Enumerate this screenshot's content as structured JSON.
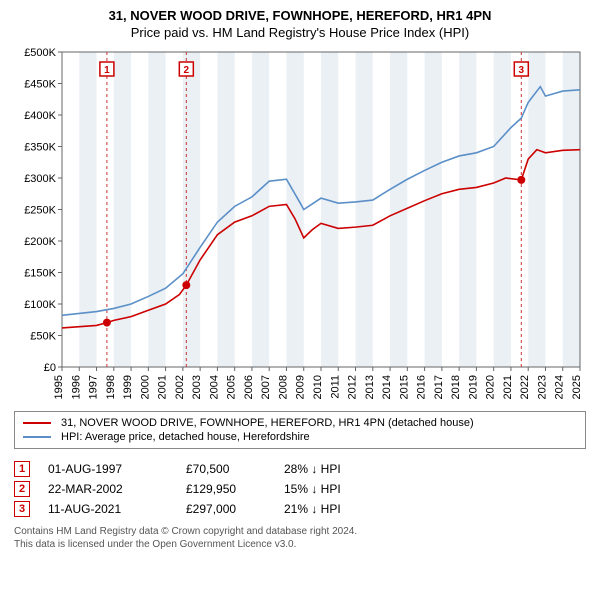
{
  "title": "31, NOVER WOOD DRIVE, FOWNHOPE, HEREFORD, HR1 4PN",
  "subtitle": "Price paid vs. HM Land Registry's House Price Index (HPI)",
  "chart": {
    "type": "line",
    "plot_bg": "#ffffff",
    "grid_band_color": "#ebf0f5",
    "axis_color": "#666666",
    "grid_color": "#e0e0e0",
    "marker_line_color": "#cc3333",
    "marker_dot_color": "#cc0000",
    "x_min": 1995,
    "x_max": 2025,
    "y_min": 0,
    "y_max": 500000,
    "y_tick_step": 50000,
    "y_tick_labels": [
      "£0",
      "£50K",
      "£100K",
      "£150K",
      "£200K",
      "£250K",
      "£300K",
      "£350K",
      "£400K",
      "£450K",
      "£500K"
    ],
    "x_ticks": [
      1995,
      1996,
      1997,
      1998,
      1999,
      2000,
      2001,
      2002,
      2003,
      2004,
      2005,
      2006,
      2007,
      2008,
      2009,
      2010,
      2011,
      2012,
      2013,
      2014,
      2015,
      2016,
      2017,
      2018,
      2019,
      2020,
      2021,
      2022,
      2023,
      2024,
      2025
    ],
    "series": [
      {
        "name": "property",
        "label": "31, NOVER WOOD DRIVE, FOWNHOPE, HEREFORD, HR1 4PN (detached house)",
        "color": "#cc0000",
        "data": [
          [
            1995,
            62000
          ],
          [
            1996,
            64000
          ],
          [
            1997,
            66000
          ],
          [
            1997.6,
            70500
          ],
          [
            1998,
            74000
          ],
          [
            1999,
            80000
          ],
          [
            2000,
            90000
          ],
          [
            2001,
            100000
          ],
          [
            2001.8,
            115000
          ],
          [
            2002.2,
            129950
          ],
          [
            2003,
            170000
          ],
          [
            2004,
            210000
          ],
          [
            2005,
            230000
          ],
          [
            2006,
            240000
          ],
          [
            2007,
            255000
          ],
          [
            2008,
            258000
          ],
          [
            2008.5,
            235000
          ],
          [
            2009,
            205000
          ],
          [
            2009.5,
            218000
          ],
          [
            2010,
            228000
          ],
          [
            2011,
            220000
          ],
          [
            2012,
            222000
          ],
          [
            2013,
            225000
          ],
          [
            2014,
            240000
          ],
          [
            2015,
            252000
          ],
          [
            2016,
            264000
          ],
          [
            2017,
            275000
          ],
          [
            2018,
            282000
          ],
          [
            2019,
            285000
          ],
          [
            2020,
            292000
          ],
          [
            2020.7,
            300000
          ],
          [
            2021.6,
            297000
          ],
          [
            2022,
            330000
          ],
          [
            2022.5,
            345000
          ],
          [
            2023,
            340000
          ],
          [
            2024,
            344000
          ],
          [
            2025,
            345000
          ]
        ]
      },
      {
        "name": "hpi",
        "label": "HPI: Average price, detached house, Herefordshire",
        "color": "#5b8fc7",
        "data": [
          [
            1995,
            82000
          ],
          [
            1996,
            85000
          ],
          [
            1997,
            88000
          ],
          [
            1998,
            93000
          ],
          [
            1999,
            100000
          ],
          [
            2000,
            112000
          ],
          [
            2001,
            125000
          ],
          [
            2002,
            148000
          ],
          [
            2003,
            190000
          ],
          [
            2004,
            230000
          ],
          [
            2005,
            255000
          ],
          [
            2006,
            270000
          ],
          [
            2007,
            295000
          ],
          [
            2008,
            298000
          ],
          [
            2008.8,
            260000
          ],
          [
            2009,
            250000
          ],
          [
            2010,
            268000
          ],
          [
            2011,
            260000
          ],
          [
            2012,
            262000
          ],
          [
            2013,
            265000
          ],
          [
            2014,
            282000
          ],
          [
            2015,
            298000
          ],
          [
            2016,
            312000
          ],
          [
            2017,
            325000
          ],
          [
            2018,
            335000
          ],
          [
            2019,
            340000
          ],
          [
            2020,
            350000
          ],
          [
            2021,
            380000
          ],
          [
            2021.6,
            395000
          ],
          [
            2022,
            420000
          ],
          [
            2022.7,
            445000
          ],
          [
            2023,
            430000
          ],
          [
            2024,
            438000
          ],
          [
            2025,
            440000
          ]
        ]
      }
    ],
    "markers": [
      {
        "idx": "1",
        "x": 1997.6,
        "y": 70500
      },
      {
        "idx": "2",
        "x": 2002.2,
        "y": 129950
      },
      {
        "idx": "3",
        "x": 2021.6,
        "y": 297000
      }
    ]
  },
  "legend": {
    "series1_label": "31, NOVER WOOD DRIVE, FOWNHOPE, HEREFORD, HR1 4PN (detached house)",
    "series1_color": "#cc0000",
    "series2_label": "HPI: Average price, detached house, Herefordshire",
    "series2_color": "#5b8fc7"
  },
  "transactions": [
    {
      "idx": "1",
      "date": "01-AUG-1997",
      "price": "£70,500",
      "hpi": "28% ↓ HPI"
    },
    {
      "idx": "2",
      "date": "22-MAR-2002",
      "price": "£129,950",
      "hpi": "15% ↓ HPI"
    },
    {
      "idx": "3",
      "date": "11-AUG-2021",
      "price": "£297,000",
      "hpi": "21% ↓ HPI"
    }
  ],
  "footer": {
    "line1": "Contains HM Land Registry data © Crown copyright and database right 2024.",
    "line2": "This data is licensed under the Open Government Licence v3.0."
  }
}
